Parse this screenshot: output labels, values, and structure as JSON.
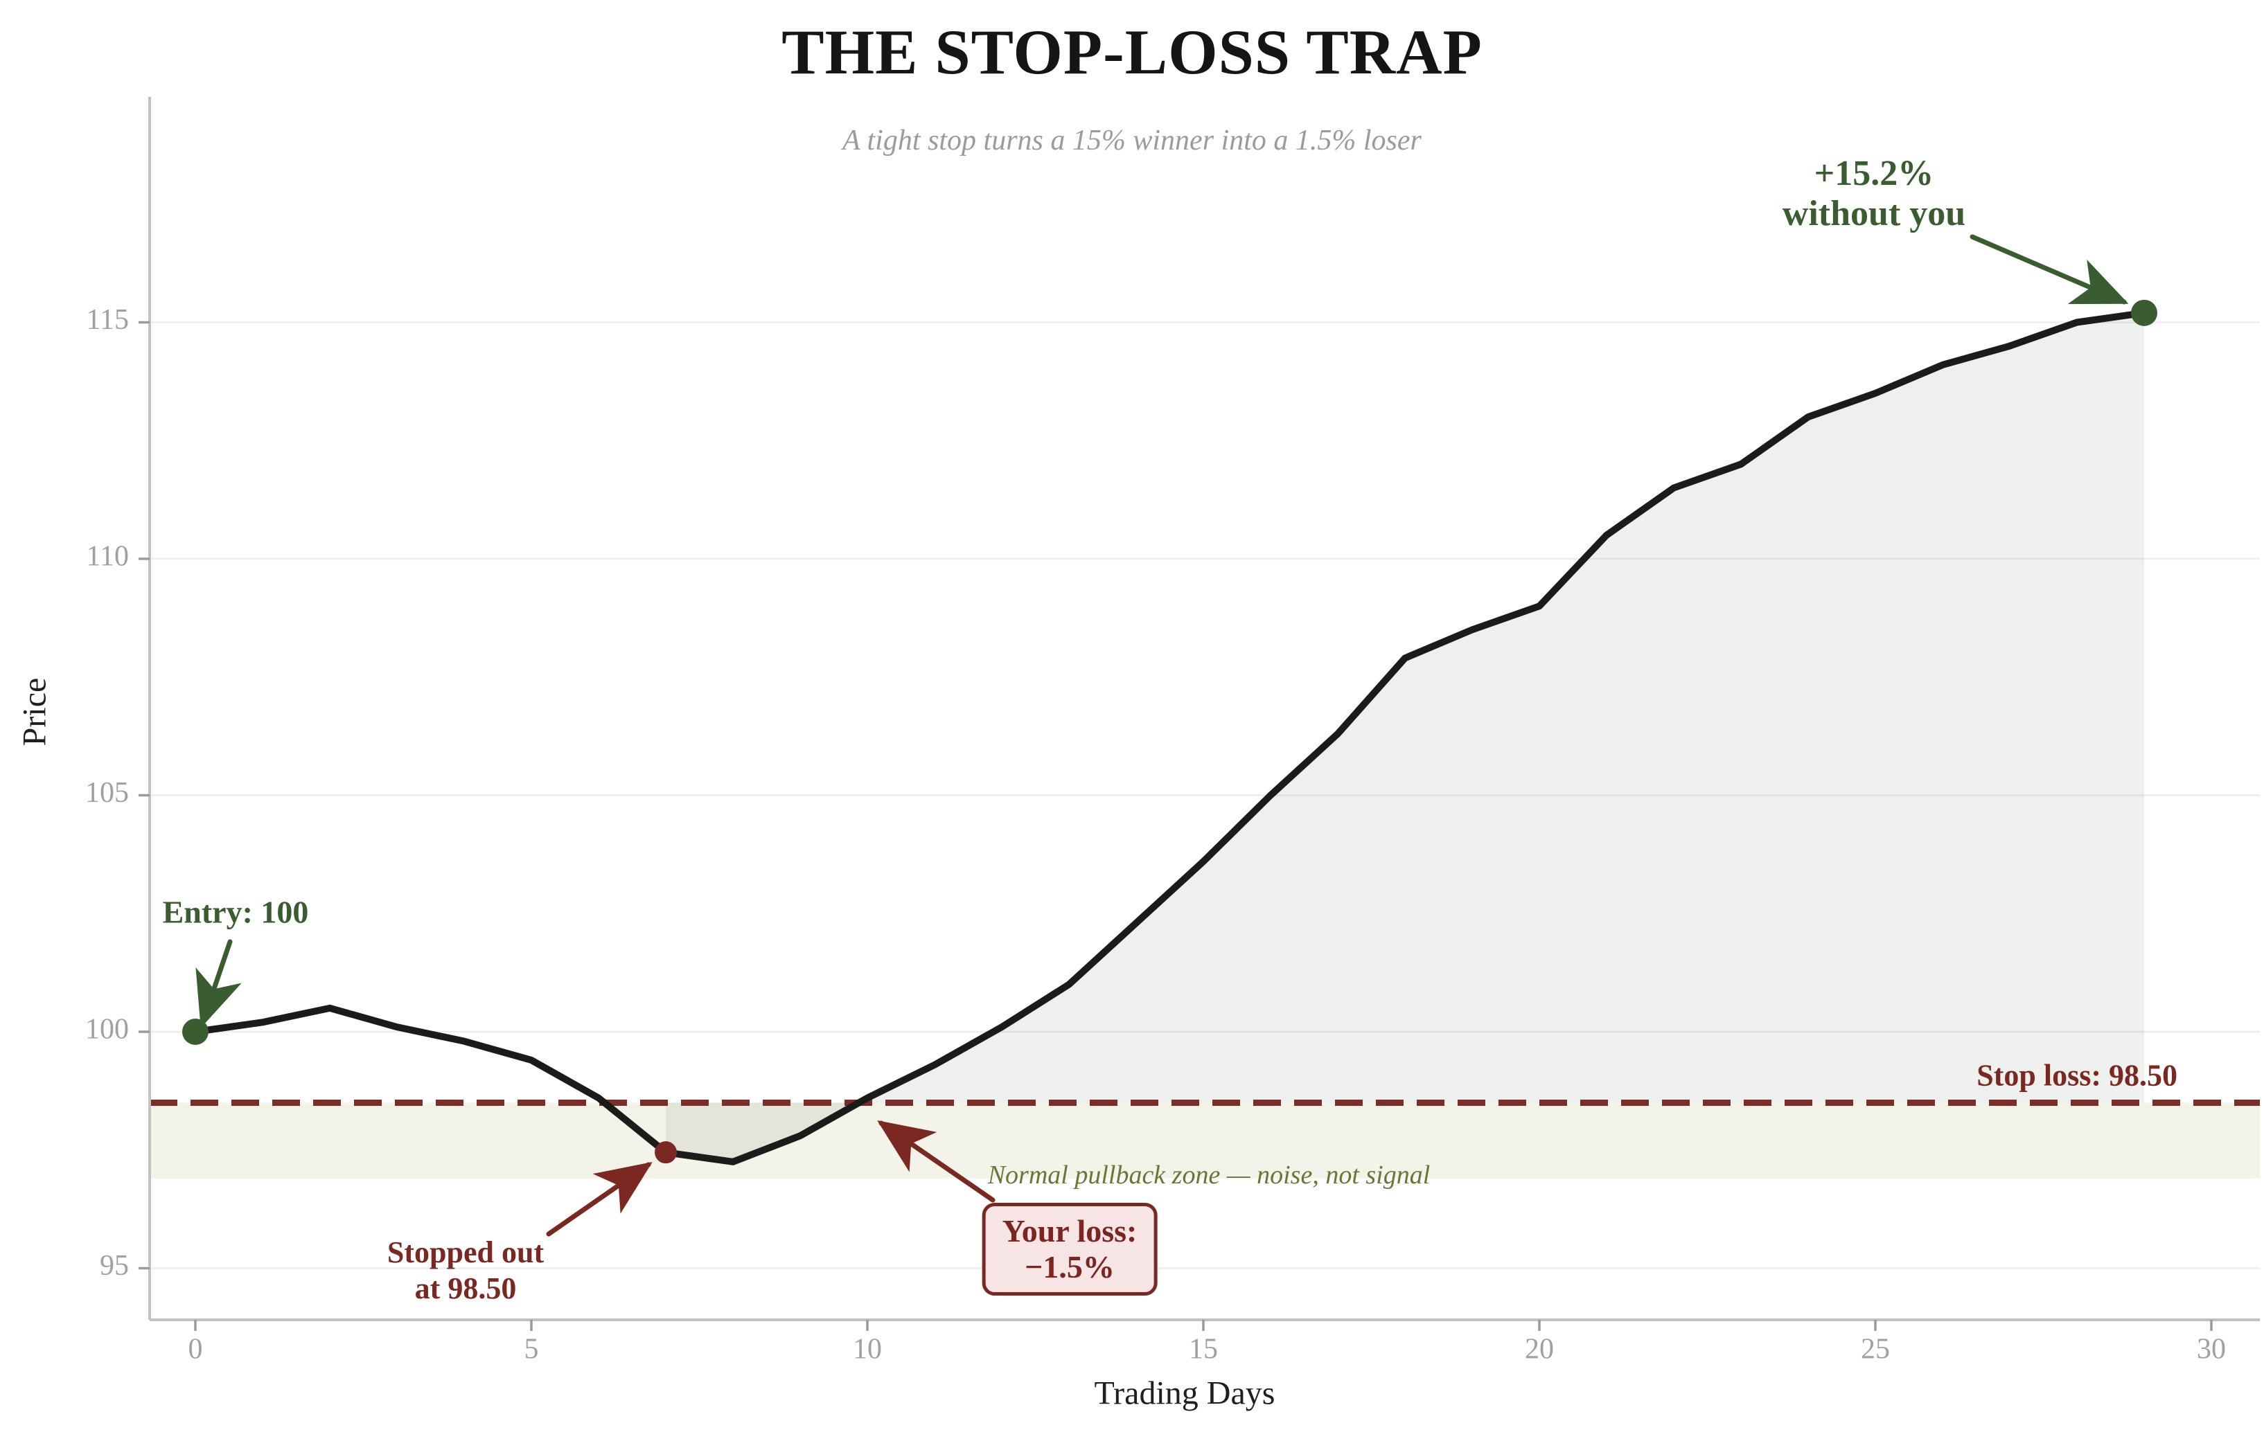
{
  "title": "THE STOP-LOSS TRAP",
  "subtitle": "A tight stop turns a 15% winner into a 1.5% loser",
  "axes": {
    "x_label": "Trading Days",
    "y_label": "Price",
    "x_ticks": [
      0,
      5,
      10,
      15,
      20,
      25,
      30
    ],
    "y_ticks": [
      95,
      100,
      105,
      110,
      115
    ]
  },
  "annotations": {
    "entry": {
      "text": "Entry: 100",
      "day": 0,
      "price": 100
    },
    "stopped_out": {
      "line1": "Stopped out",
      "line2": "at 98.50",
      "day": 7,
      "price": 97.45
    },
    "your_loss": {
      "line1": "Your loss:",
      "line2": "−1.5%"
    },
    "gain": {
      "line1": "+15.2%",
      "line2": "without you",
      "day": 29,
      "price": 115.2
    },
    "stop_loss_label": "Stop loss: 98.50",
    "pullback_zone_label": "Normal pullback zone — noise, not signal"
  },
  "colors": {
    "green": "#3a5c31",
    "red": "#7b2823",
    "red_dash": "#7d2d28",
    "olive": "#6f7337",
    "price_line": "#1b1b1b",
    "area_fill": "rgba(132,148,128,0.14)",
    "band_fill": "#f3f3ea",
    "box_bg": "#f7e4e4",
    "grid": "#ededed",
    "spine": "#c2c2c2",
    "tick_label": "#a0a0a0",
    "subtitle_gray": "#9b9b9b"
  },
  "chart_data": {
    "type": "line",
    "title": "THE STOP-LOSS TRAP",
    "subtitle": "A tight stop turns a 15% winner into a 1.5% loser",
    "xlabel": "Trading Days",
    "ylabel": "Price",
    "x_ticks": [
      0,
      5,
      10,
      15,
      20,
      25,
      30
    ],
    "y_ticks": [
      95,
      100,
      105,
      110,
      115
    ],
    "days": [
      0,
      1,
      2,
      3,
      4,
      5,
      6,
      7,
      8,
      9,
      10,
      11,
      12,
      13,
      14,
      15,
      16,
      17,
      18,
      19,
      20,
      21,
      22,
      23,
      24,
      25,
      26,
      27,
      28,
      29
    ],
    "prices": [
      100.0,
      100.2,
      100.5,
      100.1,
      99.8,
      99.4,
      98.6,
      97.45,
      97.25,
      97.8,
      98.6,
      99.3,
      100.1,
      101.0,
      102.3,
      103.6,
      105.0,
      106.3,
      107.9,
      108.5,
      109.0,
      110.5,
      111.5,
      112.0,
      113.0,
      113.5,
      114.1,
      114.5,
      115.0,
      115.2
    ],
    "stop_loss_level": 98.5,
    "pullback_zone": [
      96.9,
      98.5
    ],
    "shaded_area": "between price line and stop-loss level, from day 7 (stop-out) to day 29",
    "markers": [
      {
        "name": "entry-point",
        "day": 0,
        "price": 100.0,
        "color": "#3a5c31"
      },
      {
        "name": "stop-out-point",
        "day": 7,
        "price": 97.45,
        "color": "#7b2823"
      },
      {
        "name": "final-point",
        "day": 29,
        "price": 115.2,
        "color": "#3a5c31"
      }
    ],
    "grid": "horizontal only",
    "legend": "none"
  }
}
